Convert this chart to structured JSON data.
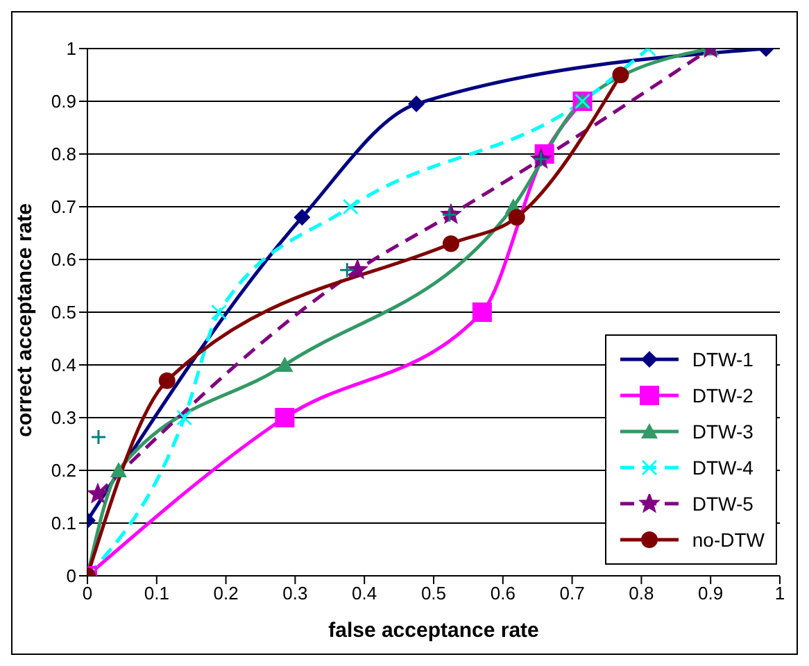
{
  "chart_data": {
    "type": "line",
    "xlabel": "false acceptance rate",
    "ylabel": "correct acceptance rate",
    "xlim": [
      0,
      1
    ],
    "ylim": [
      0,
      1
    ],
    "xticks": [
      0,
      0.1,
      0.2,
      0.3,
      0.4,
      0.5,
      0.6,
      0.7,
      0.8,
      0.9,
      1
    ],
    "yticks": [
      0,
      0.1,
      0.2,
      0.3,
      0.4,
      0.5,
      0.6,
      0.7,
      0.8,
      0.9,
      1
    ],
    "grid": "y",
    "legend": "bottom right",
    "series": [
      {
        "name": "DTW-1",
        "color": "#000080",
        "marker": "diamond",
        "line_style": "solid",
        "x": [
          0,
          0.31,
          0.475,
          0.98
        ],
        "values": [
          0.105,
          0.68,
          0.895,
          1
        ]
      },
      {
        "name": "DTW-2",
        "color": "#ff00ff",
        "marker": "square",
        "line_style": "solid",
        "x": [
          0,
          0.285,
          0.57,
          0.66,
          0.715
        ],
        "values": [
          0,
          0.3,
          0.5,
          0.8,
          0.9
        ]
      },
      {
        "name": "DTW-3",
        "color": "#339966",
        "marker": "triangle",
        "line_style": "solid",
        "x": [
          0,
          0.045,
          0.285,
          0.615,
          0.715,
          0.9
        ],
        "values": [
          0,
          0.2,
          0.4,
          0.7,
          0.9,
          1
        ]
      },
      {
        "name": "DTW-4",
        "color": "#00ffff",
        "marker": "cross",
        "line_style": "dashed",
        "x": [
          0,
          0.14,
          0.19,
          0.38,
          0.715,
          0.81
        ],
        "values": [
          0,
          0.3,
          0.5,
          0.7,
          0.9,
          1
        ]
      },
      {
        "name": "DTW-5",
        "color": "#800080",
        "marker": "star",
        "line_style": "dashed",
        "x": [
          0.015,
          0.39,
          0.525,
          0.655,
          0.9
        ],
        "values": [
          0.155,
          0.58,
          0.685,
          0.79,
          1
        ]
      },
      {
        "name": "no-DTW",
        "color": "#800000",
        "marker": "circle",
        "line_style": "solid",
        "x": [
          0,
          0.115,
          0.525,
          0.62,
          0.77
        ],
        "values": [
          0,
          0.37,
          0.63,
          0.68,
          0.95
        ]
      },
      {
        "type": "scatter",
        "color": "#008080",
        "marker": "cross",
        "x": [
          0.016,
          0.375,
          0.523,
          0.655
        ],
        "values": [
          0.263,
          0.58,
          0.685,
          0.79
        ]
      }
    ]
  }
}
